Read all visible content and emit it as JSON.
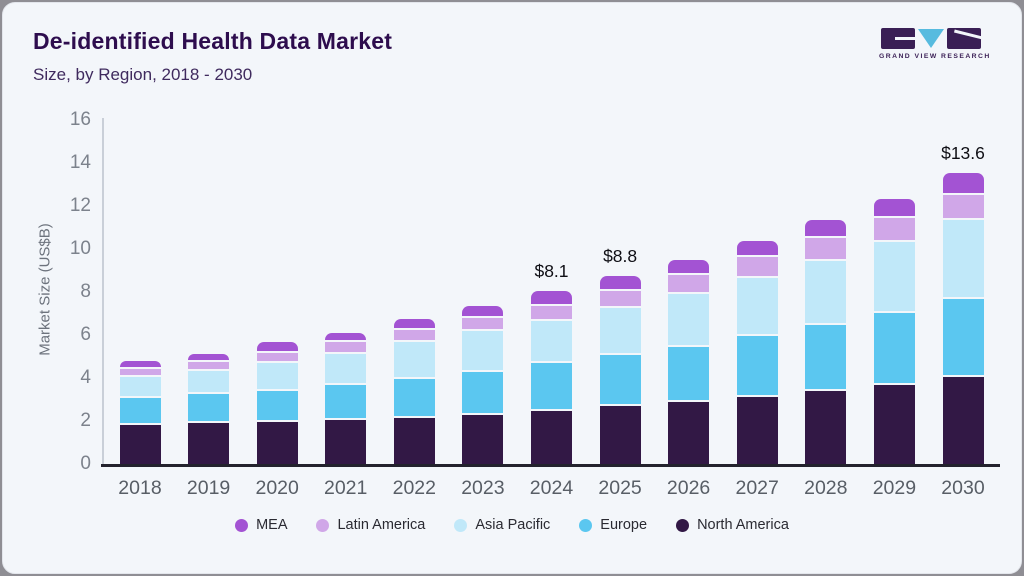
{
  "header": {
    "title": "De-identified Health Data Market",
    "subtitle": "Size, by Region, 2018 - 2030"
  },
  "logo": {
    "text": "GRAND VIEW RESEARCH",
    "block_color": "#3a1f55",
    "triangle_color": "#57bbdf"
  },
  "chart_data": {
    "type": "bar",
    "stacked": true,
    "title": "De-identified Health Data Market",
    "subtitle": "Size, by Region, 2018 - 2030",
    "ylabel": "Market Size (US$B)",
    "xlabel": "",
    "ylim": [
      0,
      16
    ],
    "yticks": [
      0,
      2,
      4,
      6,
      8,
      10,
      12,
      14,
      16
    ],
    "grid": false,
    "legend_position": "bottom",
    "categories": [
      "2018",
      "2019",
      "2020",
      "2021",
      "2022",
      "2023",
      "2024",
      "2025",
      "2026",
      "2027",
      "2028",
      "2029",
      "2030"
    ],
    "series": [
      {
        "name": "North America",
        "color": "#321845",
        "values": [
          1.92,
          2.0,
          2.07,
          2.14,
          2.25,
          2.37,
          2.54,
          2.78,
          2.97,
          3.2,
          3.47,
          3.78,
          4.12
        ]
      },
      {
        "name": "Europe",
        "color": "#5bc7f0",
        "values": [
          1.23,
          1.33,
          1.43,
          1.64,
          1.81,
          2.0,
          2.27,
          2.37,
          2.57,
          2.86,
          3.09,
          3.35,
          3.65
        ]
      },
      {
        "name": "Asia Pacific",
        "color": "#c0e8f9",
        "values": [
          0.99,
          1.1,
          1.29,
          1.45,
          1.69,
          1.91,
          1.93,
          2.22,
          2.46,
          2.68,
          2.96,
          3.3,
          3.66
        ]
      },
      {
        "name": "Latin America",
        "color": "#d0a7e8",
        "values": [
          0.36,
          0.39,
          0.47,
          0.52,
          0.57,
          0.62,
          0.71,
          0.75,
          0.9,
          0.97,
          1.1,
          1.09,
          1.18
        ]
      },
      {
        "name": "MEA",
        "color": "#a353d3",
        "values": [
          0.37,
          0.41,
          0.51,
          0.46,
          0.52,
          0.55,
          0.67,
          0.7,
          0.7,
          0.75,
          0.81,
          0.89,
          1.02
        ]
      }
    ],
    "totals_shown": [
      {
        "category": "2024",
        "label": "$8.1"
      },
      {
        "category": "2025",
        "label": "$8.8"
      },
      {
        "category": "2030",
        "label": "$13.6"
      }
    ],
    "legend": [
      "MEA",
      "Latin America",
      "Asia Pacific",
      "Europe",
      "North America"
    ]
  }
}
